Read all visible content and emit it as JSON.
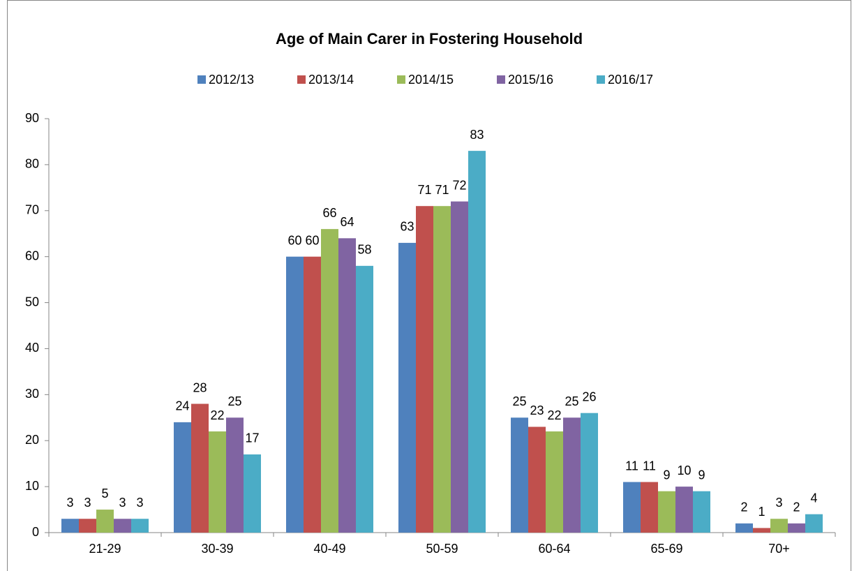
{
  "chart_data": {
    "type": "bar",
    "title": "Age of Main Carer in Fostering Household",
    "categories": [
      "21-29",
      "30-39",
      "40-49",
      "50-59",
      "60-64",
      "65-69",
      "70+"
    ],
    "series": [
      {
        "name": "2012/13",
        "color": "#4f81bd",
        "values": [
          3,
          24,
          60,
          63,
          25,
          11,
          2
        ]
      },
      {
        "name": "2013/14",
        "color": "#c0504d",
        "values": [
          3,
          28,
          60,
          71,
          23,
          11,
          1
        ]
      },
      {
        "name": "2014/15",
        "color": "#9bbb59",
        "values": [
          5,
          22,
          66,
          71,
          22,
          9,
          3
        ]
      },
      {
        "name": "2015/16",
        "color": "#8064a2",
        "values": [
          3,
          25,
          64,
          72,
          25,
          10,
          2
        ]
      },
      {
        "name": "2016/17",
        "color": "#4bacc6",
        "values": [
          3,
          17,
          58,
          83,
          26,
          9,
          4
        ]
      }
    ],
    "ylim": [
      0,
      90
    ],
    "yticks": [
      0,
      10,
      20,
      30,
      40,
      50,
      60,
      70,
      80,
      90
    ],
    "grid": false,
    "legend": "top"
  }
}
